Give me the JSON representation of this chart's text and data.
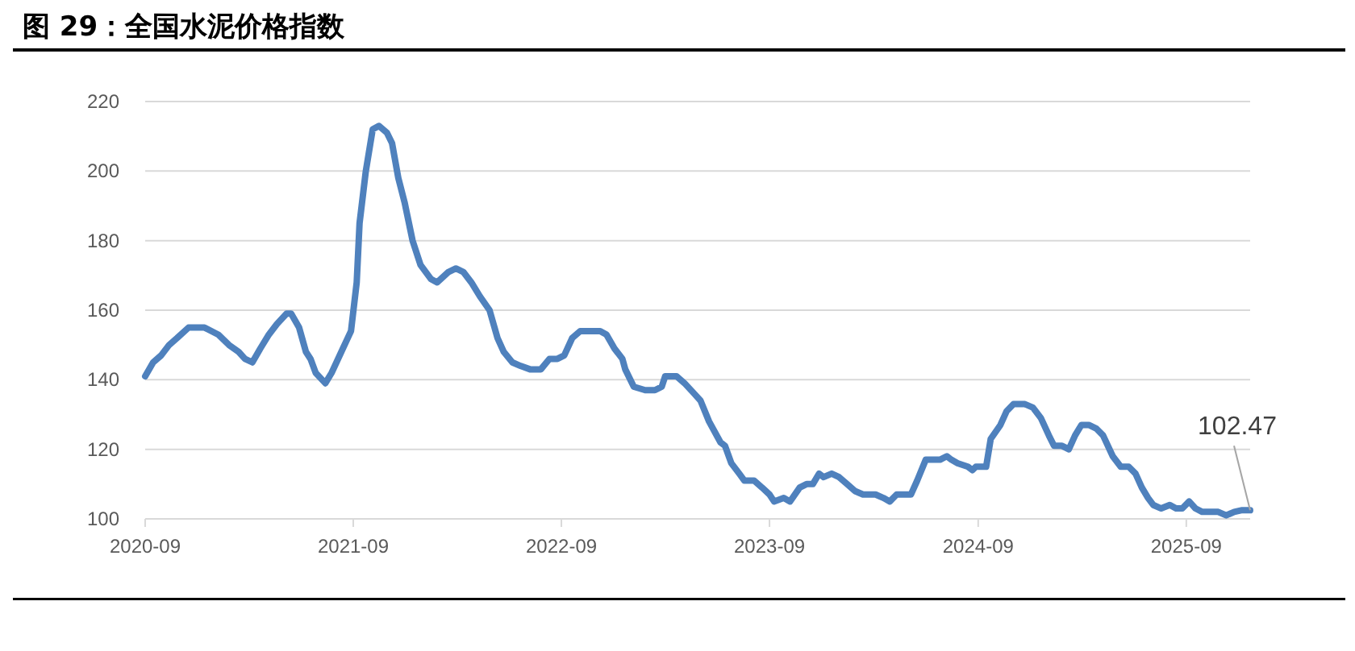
{
  "chart_data": {
    "type": "line",
    "title": "图 29：全国水泥价格指数",
    "x": [
      "2020-09-01",
      "2020-09-15",
      "2020-09-29",
      "2020-10-13",
      "2020-10-27",
      "2020-11-16",
      "2020-12-14",
      "2021-01-07",
      "2021-01-26",
      "2021-02-12",
      "2021-02-23",
      "2021-03-08",
      "2021-03-22",
      "2021-04-06",
      "2021-04-20",
      "2021-05-07",
      "2021-05-15",
      "2021-05-29",
      "2021-06-10",
      "2021-06-18",
      "2021-06-27",
      "2021-07-14",
      "2021-07-25",
      "2021-08-11",
      "2021-08-28",
      "2021-09-07",
      "2021-09-12",
      "2021-09-23",
      "2021-10-05",
      "2021-10-16",
      "2021-10-30",
      "2021-11-08",
      "2021-11-19",
      "2021-11-30",
      "2021-12-14",
      "2021-12-28",
      "2022-01-15",
      "2022-01-26",
      "2022-02-15",
      "2022-02-28",
      "2022-03-13",
      "2022-03-27",
      "2022-04-11",
      "2022-04-28",
      "2022-05-12",
      "2022-05-23",
      "2022-06-07",
      "2022-06-21",
      "2022-07-08",
      "2022-07-19",
      "2022-07-27",
      "2022-08-11",
      "2022-08-25",
      "2022-09-06",
      "2022-09-20",
      "2022-10-04",
      "2022-10-21",
      "2022-11-08",
      "2022-11-19",
      "2022-12-03",
      "2022-12-17",
      "2022-12-22",
      "2023-01-06",
      "2023-01-26",
      "2023-02-12",
      "2023-02-24",
      "2023-03-02",
      "2023-03-22",
      "2023-04-05",
      "2023-04-22",
      "2023-05-03",
      "2023-05-18",
      "2023-06-07",
      "2023-06-15",
      "2023-06-26",
      "2023-07-10",
      "2023-07-19",
      "2023-08-05",
      "2023-08-19",
      "2023-09-01",
      "2023-09-09",
      "2023-09-26",
      "2023-10-07",
      "2023-10-24",
      "2023-11-05",
      "2023-11-16",
      "2023-11-27",
      "2023-12-05",
      "2023-12-19",
      "2024-01-01",
      "2024-01-15",
      "2024-01-29",
      "2024-02-12",
      "2024-03-05",
      "2024-03-19",
      "2024-03-30",
      "2024-04-11",
      "2024-05-06",
      "2024-05-17",
      "2024-06-01",
      "2024-06-18",
      "2024-06-26",
      "2024-07-08",
      "2024-07-16",
      "2024-07-27",
      "2024-08-14",
      "2024-08-22",
      "2024-08-28",
      "2024-09-15",
      "2024-09-23",
      "2024-10-10",
      "2024-10-21",
      "2024-11-02",
      "2024-11-22",
      "2024-12-06",
      "2024-12-20",
      "2025-01-03",
      "2025-01-12",
      "2025-01-26",
      "2025-02-07",
      "2025-02-18",
      "2025-03-01",
      "2025-03-14",
      "2025-03-27",
      "2025-04-08",
      "2025-04-25",
      "2025-05-09",
      "2025-05-23",
      "2025-06-04",
      "2025-06-15",
      "2025-06-26",
      "2025-07-05",
      "2025-07-19",
      "2025-08-03",
      "2025-08-14",
      "2025-08-25",
      "2025-09-06",
      "2025-09-17",
      "2025-09-29",
      "2025-10-13",
      "2025-10-27",
      "2025-11-10",
      "2025-11-24",
      "2025-12-08",
      "2025-12-22"
    ],
    "series": [
      {
        "color": "#4f81bd",
        "values": [
          141,
          145,
          147,
          150,
          152,
          155,
          155,
          153,
          150,
          148,
          146,
          145,
          149,
          153,
          156,
          159,
          159,
          155,
          148,
          146,
          142,
          139,
          142,
          148,
          154,
          168,
          185,
          200,
          212,
          213,
          211,
          208,
          198,
          191,
          180,
          173,
          169,
          168,
          171,
          172,
          171,
          168,
          164,
          160,
          152,
          148,
          145,
          144,
          143,
          143,
          143,
          146,
          146,
          147,
          152,
          154,
          154,
          154,
          153,
          149,
          146,
          143,
          138,
          137,
          137,
          138,
          141,
          141,
          139,
          136,
          134,
          128,
          122,
          121,
          116,
          113,
          111,
          111,
          109,
          107,
          105,
          106,
          105,
          109,
          110,
          110,
          113,
          112,
          113,
          112,
          110,
          108,
          107,
          107,
          106,
          105,
          107,
          107,
          111,
          117,
          117,
          117,
          118,
          117,
          116,
          115,
          114,
          115,
          115,
          123,
          127,
          131,
          133,
          133,
          132,
          129,
          124,
          121,
          121,
          120,
          124,
          127,
          127,
          126,
          124,
          118,
          115,
          115,
          113,
          109,
          106,
          104,
          103,
          104,
          103,
          103,
          105,
          103,
          102,
          102,
          102,
          101,
          102,
          102.5,
          102.47
        ]
      }
    ],
    "xlim": [
      "2020-09-01",
      "2025-12-22"
    ],
    "xticks": [
      "2020-09",
      "2021-09",
      "2022-09",
      "2023-09",
      "2024-09",
      "2025-09"
    ],
    "ylim": [
      100,
      220
    ],
    "yticks": [
      100,
      120,
      140,
      160,
      180,
      200,
      220
    ],
    "grid": "y",
    "marker": "none",
    "line_style": "solid",
    "annotations": [
      {
        "text": "102.47",
        "x": "2025-12-22",
        "y": 102.47
      }
    ]
  }
}
